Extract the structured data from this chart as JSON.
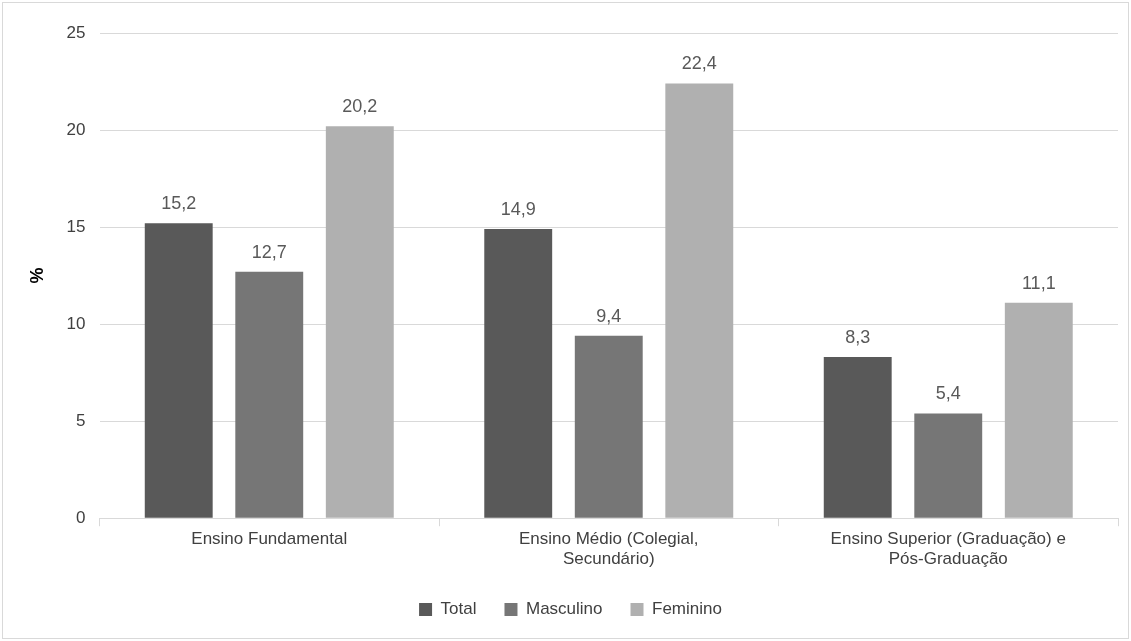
{
  "chart_data": {
    "type": "bar",
    "ylabel": "%",
    "categories": [
      "Ensino Fundamental",
      "Ensino Médio (Colegial, Secundário)",
      "Ensino Superior (Graduação) e Pós-Graduação"
    ],
    "series": [
      {
        "name": "Total",
        "color": "#595959",
        "values": [
          15.2,
          14.9,
          8.3
        ],
        "value_labels": [
          "15,2",
          "14,9",
          "8,3"
        ]
      },
      {
        "name": "Masculino",
        "color": "#767676",
        "values": [
          12.7,
          9.4,
          5.4
        ],
        "value_labels": [
          "12,7",
          "9,4",
          "5,4"
        ]
      },
      {
        "name": "Feminino",
        "color": "#b0b0b0",
        "values": [
          20.2,
          22.4,
          11.1
        ],
        "value_labels": [
          "20,2",
          "22,4",
          "11,1"
        ]
      }
    ],
    "ylim": [
      0,
      25
    ],
    "yticks": [
      0,
      5,
      10,
      15,
      20,
      25
    ],
    "grid": "y",
    "legend": "bottom"
  }
}
